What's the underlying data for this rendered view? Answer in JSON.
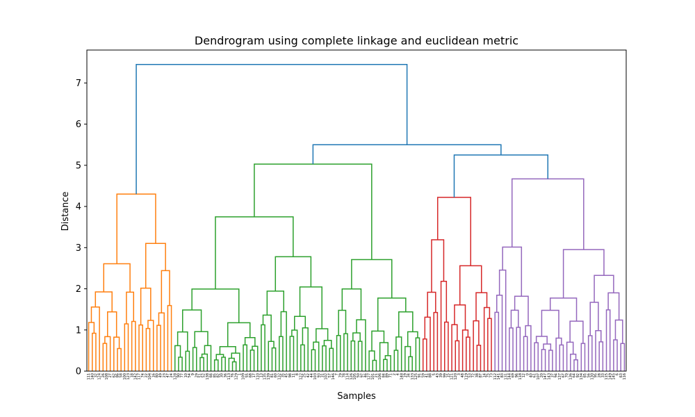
{
  "chart_data": {
    "type": "dendrogram",
    "title": "Dendrogram using complete linkage and euclidean metric",
    "xlabel": "Samples",
    "ylabel": "Distance",
    "ylim": [
      0,
      7.8
    ],
    "yticks": [
      0,
      1,
      2,
      3,
      4,
      5,
      6,
      7
    ],
    "grid": false,
    "link_color_above_threshold": "#1f77b4",
    "cluster_colors": [
      "#ff7f0e",
      "#2ca02c",
      "#d62728",
      "#9467bd"
    ],
    "leaf_count": 150,
    "clusters": [
      {
        "color": "#ff7f0e",
        "leaf_count": 24,
        "height": 4.3
      },
      {
        "color": "#2ca02c",
        "leaf_count": 69,
        "height": 5.03
      },
      {
        "color": "#d62728",
        "leaf_count": 20,
        "height": 4.22
      },
      {
        "color": "#9467bd",
        "leaf_count": 37,
        "height": 4.67
      }
    ],
    "top_links": [
      {
        "height": 7.45,
        "joins": "orange cluster + remaining samples"
      },
      {
        "height": 5.5,
        "joins": "green cluster + red/purple group"
      },
      {
        "height": 5.25,
        "joins": "red cluster + purple cluster"
      }
    ]
  }
}
